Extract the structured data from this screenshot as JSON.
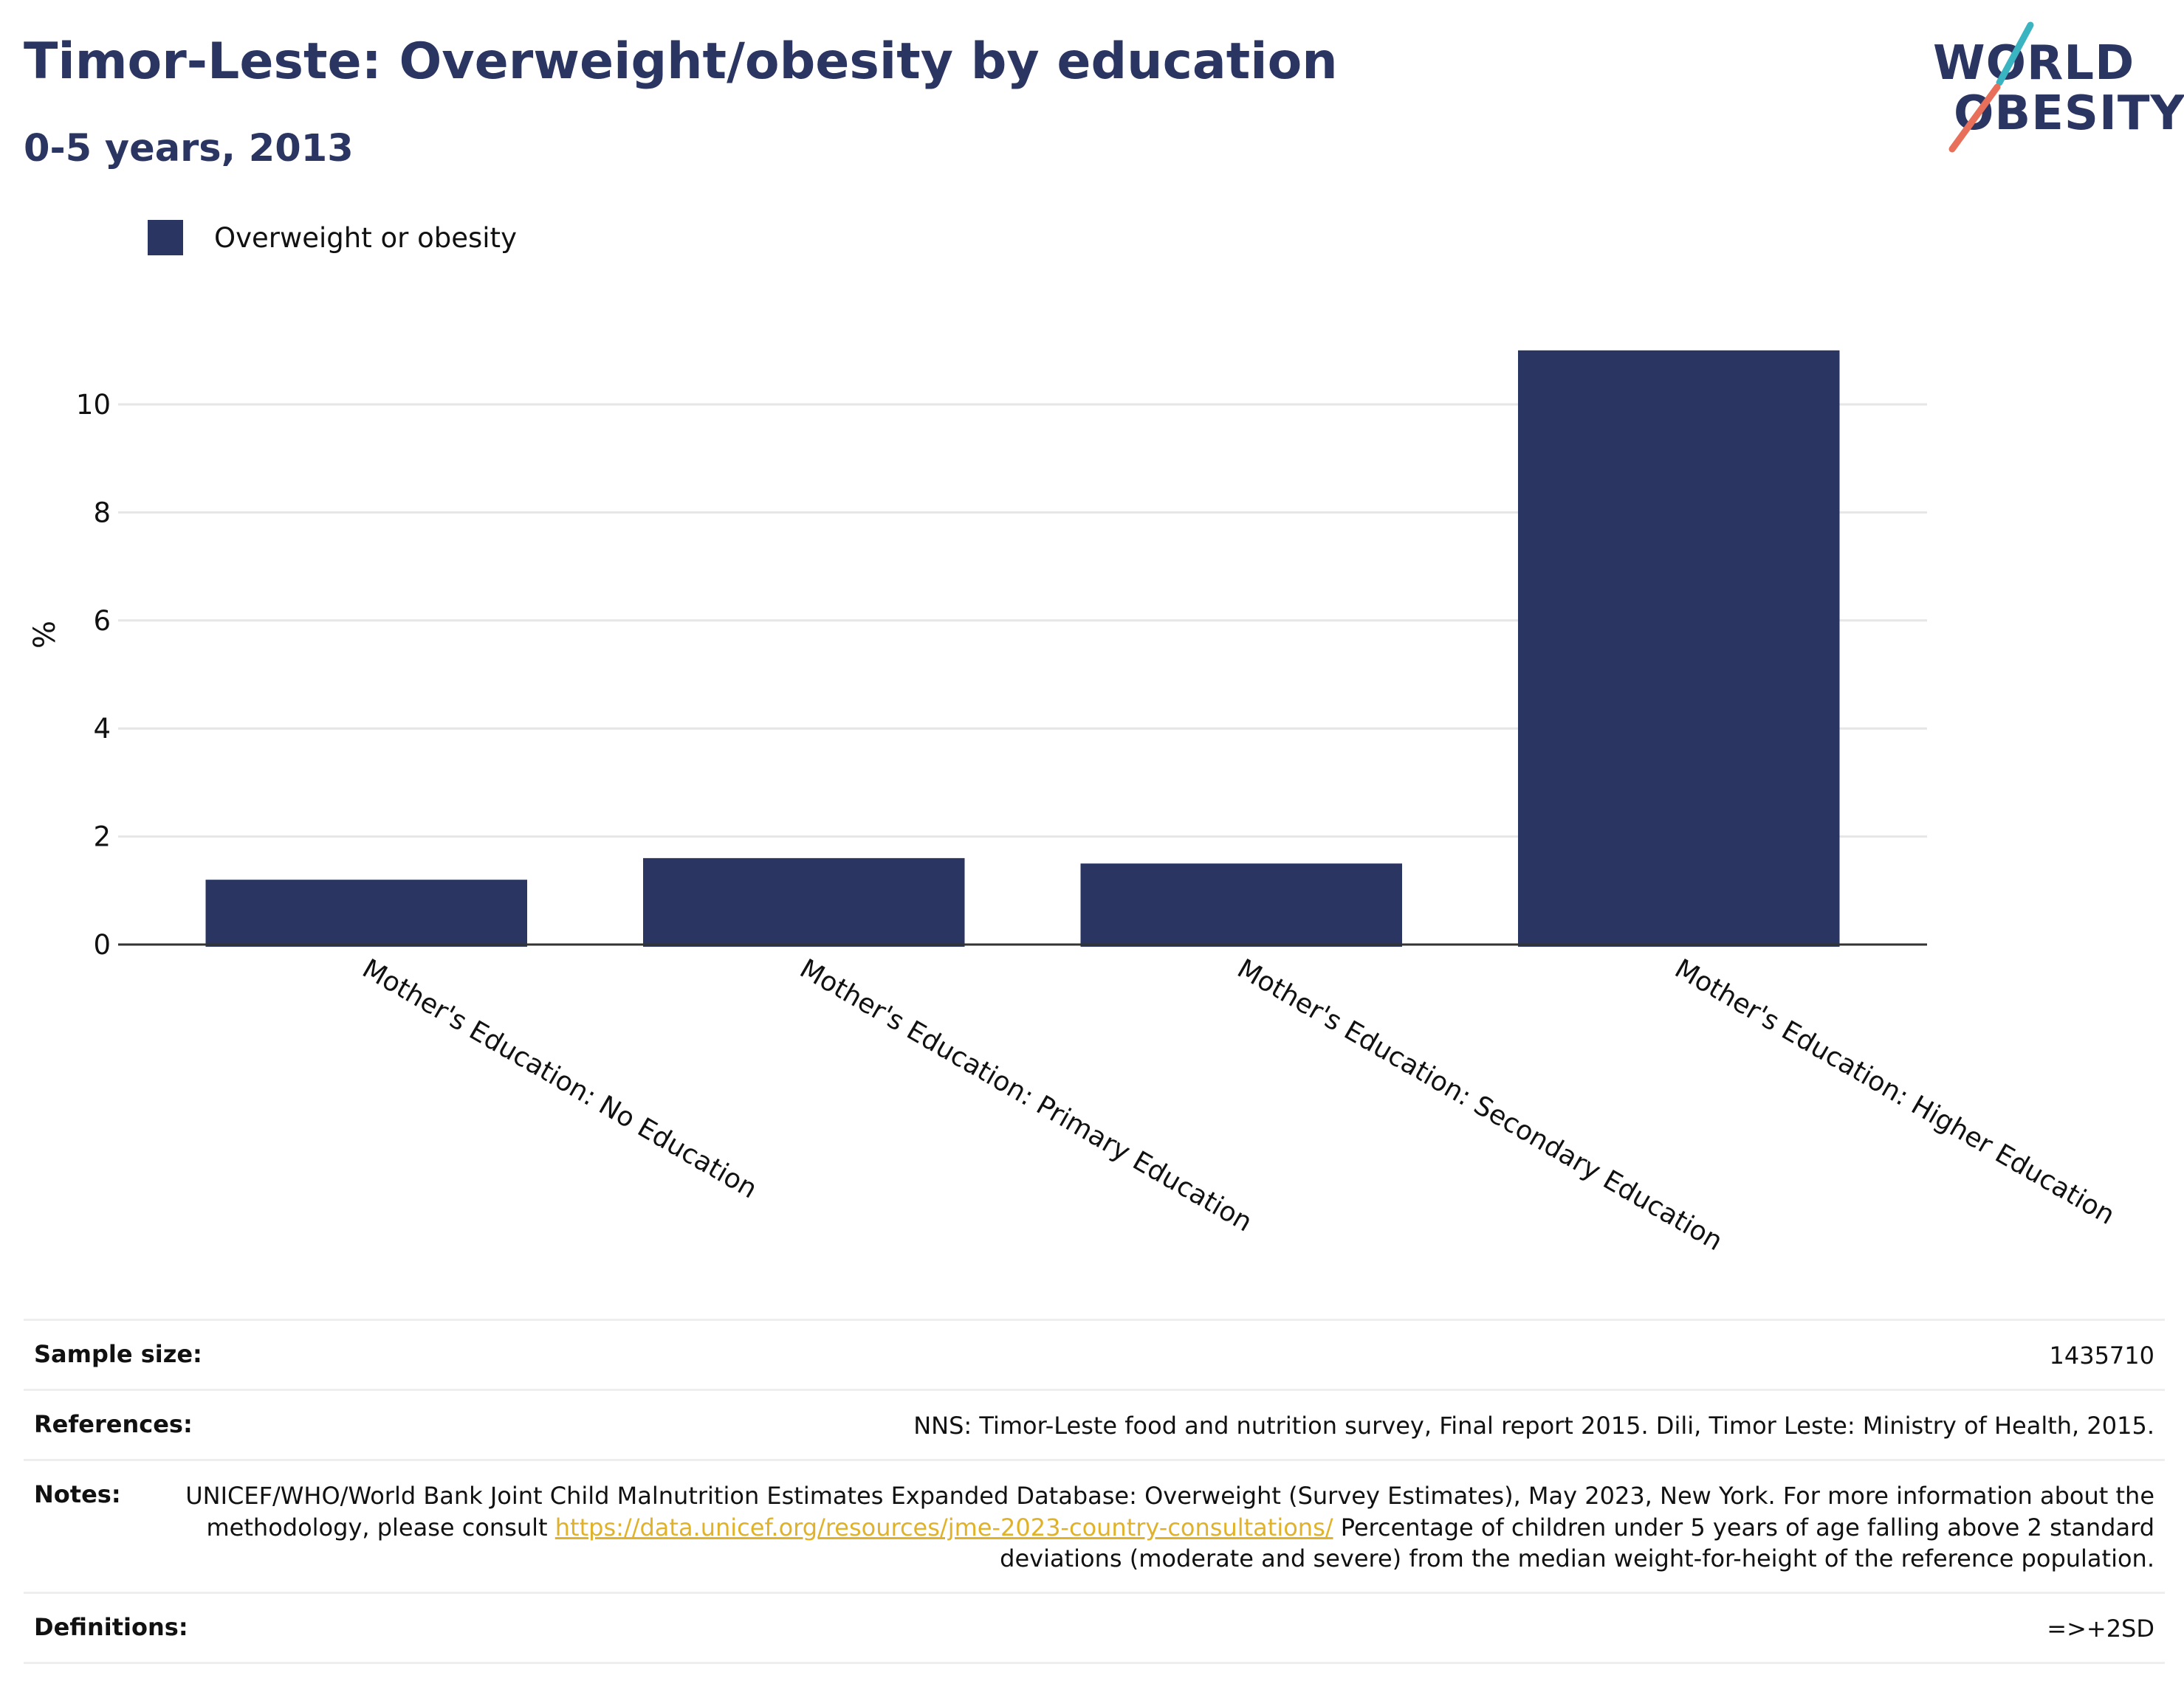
{
  "header": {
    "title": "Timor-Leste: Overweight/obesity by education",
    "subtitle": "0-5 years, 2013"
  },
  "logo": {
    "line1": "WORLD",
    "line2": "OBESITY",
    "text_color": "#2a3562",
    "slash_colors": [
      "#3bb4c1",
      "#e8705a"
    ]
  },
  "legend": {
    "label": "Overweight or obesity",
    "color": "#2a3562"
  },
  "chart_data": {
    "type": "bar",
    "categories": [
      "Mother's Education: No Education",
      "Mother's Education: Primary Education",
      "Mother's Education: Secondary Education",
      "Mother's Education: Higher Education"
    ],
    "series": [
      {
        "name": "Overweight or obesity",
        "values": [
          1.2,
          1.6,
          1.5,
          11.0
        ],
        "color": "#2a3562"
      }
    ],
    "ylabel": "%",
    "xlabel": "",
    "ylim": [
      0,
      11.5
    ],
    "yticks": [
      0,
      2,
      4,
      6,
      8,
      10
    ],
    "grid": true,
    "legend_position": "top-left",
    "xtick_rotation": "diagonal"
  },
  "info": {
    "sample_size": {
      "label": "Sample size:",
      "value": "1435710"
    },
    "references": {
      "label": "References:",
      "value": "NNS: Timor-Leste food and nutrition survey, Final report 2015. Dili, Timor Leste: Ministry of Health, 2015."
    },
    "notes": {
      "label": "Notes:",
      "text_before": "UNICEF/WHO/World Bank Joint Child Malnutrition Estimates Expanded Database: Overweight (Survey Estimates), May 2023, New York. For more information about the methodology, please consult ",
      "link": "https://data.unicef.org/resources/jme-2023-country-consultations/",
      "text_after": " Percentage of children under 5 years of age falling above 2 standard deviations (moderate and severe) from the median weight-for-height of the reference population."
    },
    "definitions": {
      "label": "Definitions:",
      "value": "=>+2SD"
    }
  }
}
